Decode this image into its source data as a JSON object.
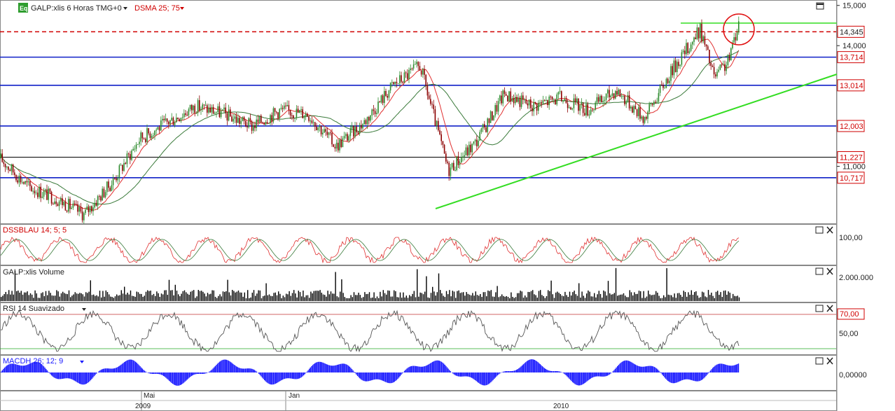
{
  "colors": {
    "price_up": "#2e8b2e",
    "price_down": "#8b0000",
    "sma_fast": "#e03030",
    "sma_slow": "#3a7a3a",
    "support": "#1020c8",
    "resistance_dash": "#d00000",
    "trend": "#33dd22",
    "volume": "#000000",
    "macd": "#1a1aff",
    "rsi": "#555555",
    "circle": "#e01010"
  },
  "price_panel": {
    "icon_label": "Eq",
    "title": "GALP:xlis 6 Horas TMG+0",
    "indicator": "DSMA 25; 75",
    "axis_ticks": [
      "15,000",
      "14,000",
      "11,000"
    ],
    "levels": [
      {
        "label": "14,345",
        "value": 14.345,
        "style": "dashed-red"
      },
      {
        "label": "13,714",
        "value": 13.714,
        "style": "blue"
      },
      {
        "label": "13,014",
        "value": 13.014,
        "style": "blue"
      },
      {
        "label": "12,003",
        "value": 12.003,
        "style": "blue"
      },
      {
        "label": "11,227",
        "value": 11.227,
        "style": "black"
      },
      {
        "label": "10,717",
        "value": 10.717,
        "style": "blue"
      }
    ]
  },
  "stoch_panel": {
    "title": "DSSBLAU 14; 5; 5",
    "tick": "100,00"
  },
  "volume_panel": {
    "title": "GALP:xlis Volume",
    "tick": "2.000.000"
  },
  "rsi_panel": {
    "title": "RSI 14 Suavizado",
    "tick_top": "70,00",
    "tick_mid": "50,00"
  },
  "macd_panel": {
    "title": "MACDH 26; 12; 9",
    "tick": "0,00000"
  },
  "time_axis": {
    "months": [
      "Mai",
      "Jan"
    ],
    "years": [
      "2009",
      "2010"
    ]
  },
  "chart_data": {
    "type": "line",
    "title": "GALP:xlis 6 Horas TMG+0",
    "x": [
      0,
      40,
      80,
      120,
      160,
      200,
      240,
      280,
      320,
      360,
      400,
      440,
      480,
      520,
      560,
      600,
      640,
      680,
      720,
      760,
      800,
      840,
      880,
      920,
      960,
      1000,
      1020,
      1040,
      1055
    ],
    "series": [
      {
        "name": "GALP:xlis",
        "values": [
          11.2,
          10.5,
          10.2,
          9.8,
          10.6,
          11.7,
          12.1,
          12.5,
          12.3,
          12.0,
          12.4,
          12.3,
          11.5,
          12.1,
          13.0,
          13.5,
          10.9,
          11.6,
          12.8,
          12.5,
          12.7,
          12.4,
          12.9,
          12.2,
          13.4,
          14.4,
          13.2,
          13.6,
          14.6
        ]
      }
    ],
    "ylim": [
      9.6,
      15.1
    ]
  }
}
